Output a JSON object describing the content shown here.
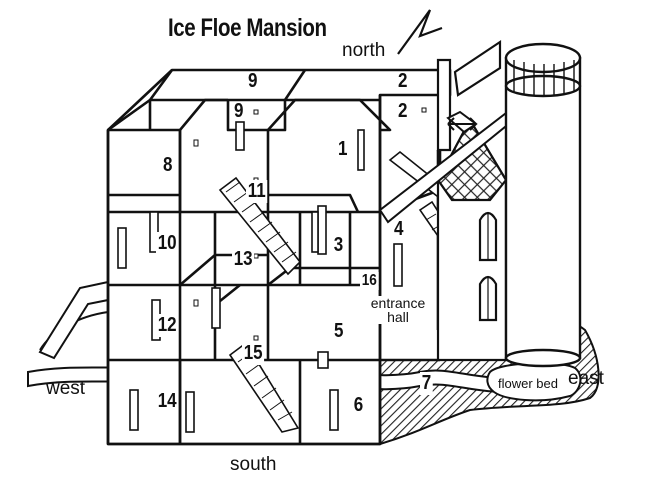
{
  "title": "Ice Floe Mansion",
  "directions": {
    "north": "north",
    "south": "south",
    "east": "east",
    "west": "west"
  },
  "areas": {
    "entrance_hall": "entrance hall",
    "flower_bed": "flower bed"
  },
  "rooms": [
    "1",
    "2",
    "2",
    "3",
    "4",
    "5",
    "6",
    "7",
    "8",
    "9",
    "9",
    "10",
    "11",
    "12",
    "13",
    "14",
    "15",
    "16"
  ]
}
